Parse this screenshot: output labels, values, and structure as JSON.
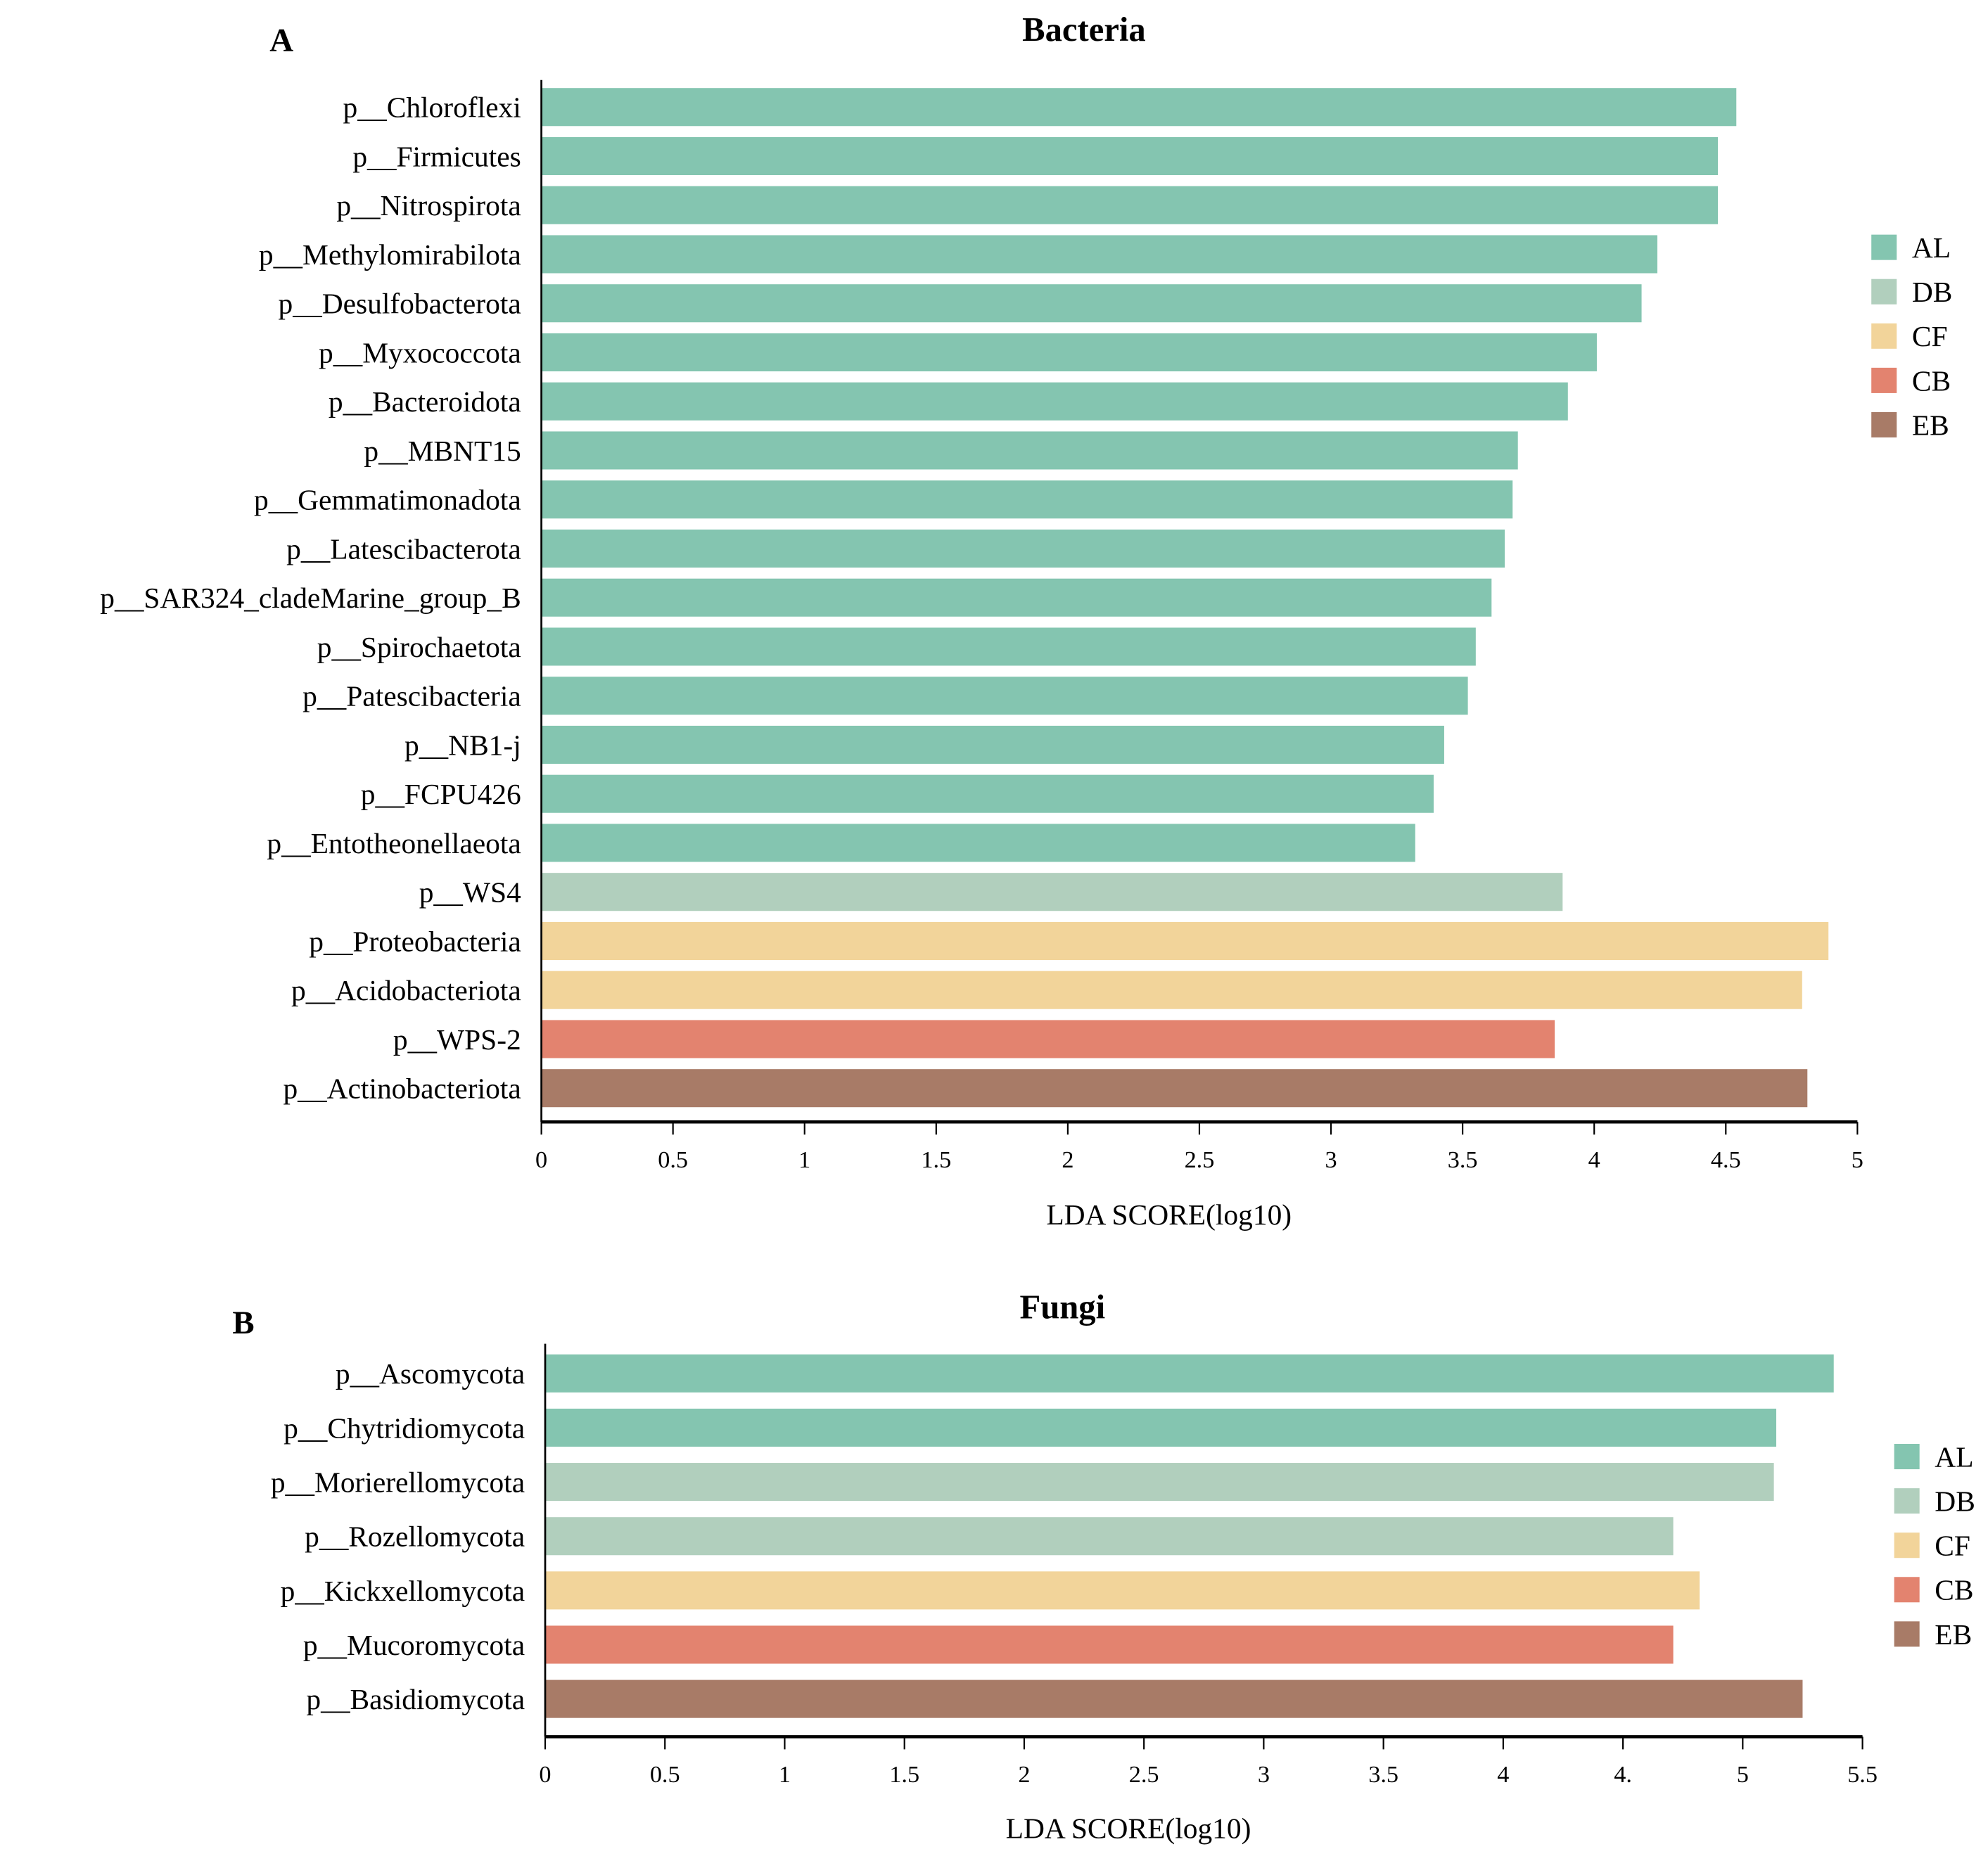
{
  "colors": {
    "AL": "#84c5b0",
    "DB": "#b1cfbd",
    "CF": "#f2d49a",
    "CB": "#e3836f",
    "EB": "#a87b67"
  },
  "chart_data": [
    {
      "type": "bar",
      "orientation": "horizontal",
      "panel_label": "A",
      "title": "Bacteria",
      "xlabel": "LDA SCORE(log10)",
      "xlim": [
        0,
        5
      ],
      "xticks": [
        "0",
        "0.5",
        "1",
        "1.5",
        "2",
        "2.5",
        "3",
        "3.5",
        "4",
        "4.5",
        "5"
      ],
      "legend": {
        "placement": "right",
        "entries": [
          "AL",
          "DB",
          "CF",
          "CB",
          "EB"
        ]
      },
      "categories": [
        "p__Chloroflexi",
        "p__Firmicutes",
        "p__Nitrospirota",
        "p__Methylomirabilota",
        "p__Desulfobacterota",
        "p__Myxococcota",
        "p__Bacteroidota",
        "p__MBNT15",
        "p__Gemmatimonadota",
        "p__Latescibacterota",
        "p__SAR324_cladeMarine_group_B",
        "p__Spirochaetota",
        "p__Patescibacteria",
        "p__NB1-j",
        "p__FCPU426",
        "p__Entotheonellaeota",
        "p__WS4",
        "p__Proteobacteria",
        "p__Acidobacteriota",
        "p__WPS-2",
        "p__Actinobacteriota"
      ],
      "values": [
        4.54,
        4.47,
        4.47,
        4.24,
        4.18,
        4.01,
        3.9,
        3.71,
        3.69,
        3.66,
        3.61,
        3.55,
        3.52,
        3.43,
        3.39,
        3.32,
        3.88,
        4.89,
        4.79,
        3.85,
        4.81
      ],
      "groups": [
        "AL",
        "AL",
        "AL",
        "AL",
        "AL",
        "AL",
        "AL",
        "AL",
        "AL",
        "AL",
        "AL",
        "AL",
        "AL",
        "AL",
        "AL",
        "AL",
        "DB",
        "CF",
        "CF",
        "CB",
        "EB"
      ]
    },
    {
      "type": "bar",
      "orientation": "horizontal",
      "panel_label": "B",
      "title": "Fungi",
      "xlabel": "LDA SCORE(log10)",
      "xlim": [
        0,
        5.5
      ],
      "xticks": [
        "0",
        "0.5",
        "1",
        "1.5",
        "2",
        "2.5",
        "3",
        "3.5",
        "4",
        "4.",
        "5",
        "5.5"
      ],
      "legend": {
        "placement": "right",
        "entries": [
          "AL",
          "DB",
          "CF",
          "CB",
          "EB"
        ]
      },
      "categories": [
        "p__Ascomycota",
        "p__Chytridiomycota",
        "p__Morierellomycota",
        "p__Rozellomycota",
        "p__Kickxellomycota",
        "p__Mucoromycota",
        "p__Basidiomycota"
      ],
      "values": [
        5.38,
        5.14,
        5.13,
        4.71,
        4.82,
        4.71,
        5.25
      ],
      "groups": [
        "AL",
        "AL",
        "DB",
        "DB",
        "CF",
        "CB",
        "EB"
      ]
    }
  ]
}
